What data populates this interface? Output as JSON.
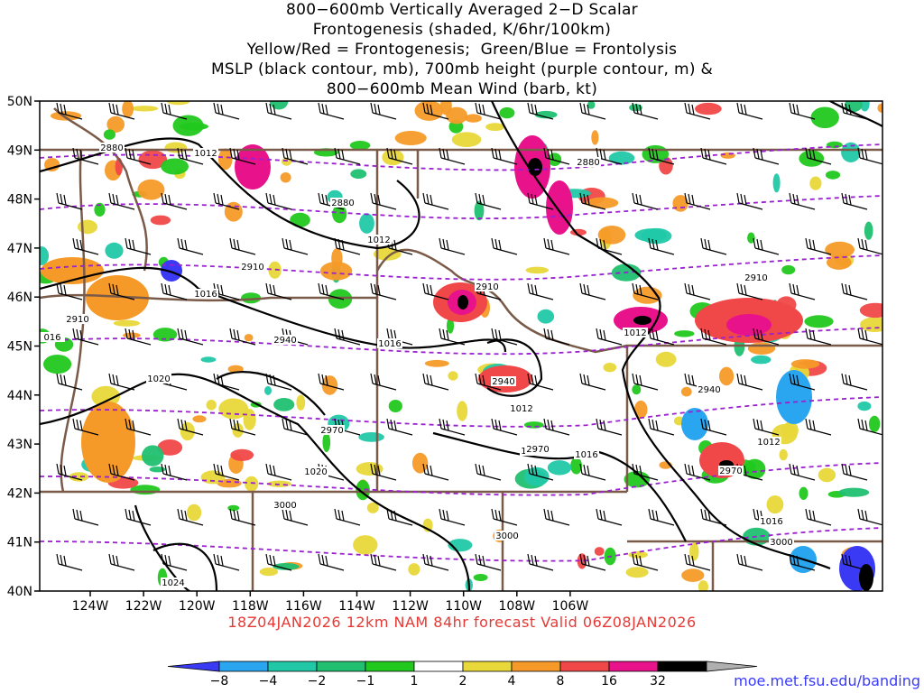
{
  "title_lines": [
    "800−600mb Vertically Averaged 2−D Scalar",
    "Frontogenesis (shaded, K/6hr/100km)",
    "Yellow/Red = Frontogenesis;  Green/Blue = Frontolysis",
    "MSLP (black contour, mb), 700mb height (purple contour, m) &",
    "800−600mb Mean Wind (barb, kt)"
  ],
  "subtitle": "18Z04JAN2026 12km NAM 84hr forecast Valid 06Z08JAN2026",
  "credit": "moe.met.fsu.edu/banding",
  "lat_labels": [
    "50N",
    "49N",
    "48N",
    "47N",
    "46N",
    "45N",
    "44N",
    "43N",
    "42N",
    "41N",
    "40N"
  ],
  "lon_labels": [
    "124W",
    "122W",
    "120W",
    "118W",
    "116W",
    "114W",
    "112W",
    "110W",
    "108W",
    "106W"
  ],
  "colorbar": {
    "labels": [
      "−8",
      "−4",
      "−2",
      "−1",
      "1",
      "2",
      "4",
      "8",
      "16",
      "32"
    ],
    "colors": [
      "#3a3af5",
      "#2aa5f0",
      "#20c8a8",
      "#20c070",
      "#21c81e",
      "#ffffff",
      "#e8d83a",
      "#f59a28",
      "#f04848",
      "#e8128a",
      "#000000",
      "#b0b0b0"
    ]
  },
  "colors": {
    "pressure": "#000000",
    "height": "#9a20d0",
    "border": "#7a5a48",
    "barb": "#000000"
  },
  "mslp_labels": [
    "1012",
    "1012",
    "1016",
    "1016",
    "1012",
    "1012",
    "1020",
    "1016",
    "1020",
    "1016",
    "1012",
    "1016",
    "1024",
    "016"
  ],
  "height_labels": [
    "2880",
    "2880",
    "2880",
    "2910",
    "2910",
    "2910",
    "2940",
    "2940",
    "2940",
    "2970",
    "2970",
    "2970",
    "3000",
    "3000",
    "3000",
    "2910"
  ],
  "icons": [
    "wind-barb-icon"
  ]
}
